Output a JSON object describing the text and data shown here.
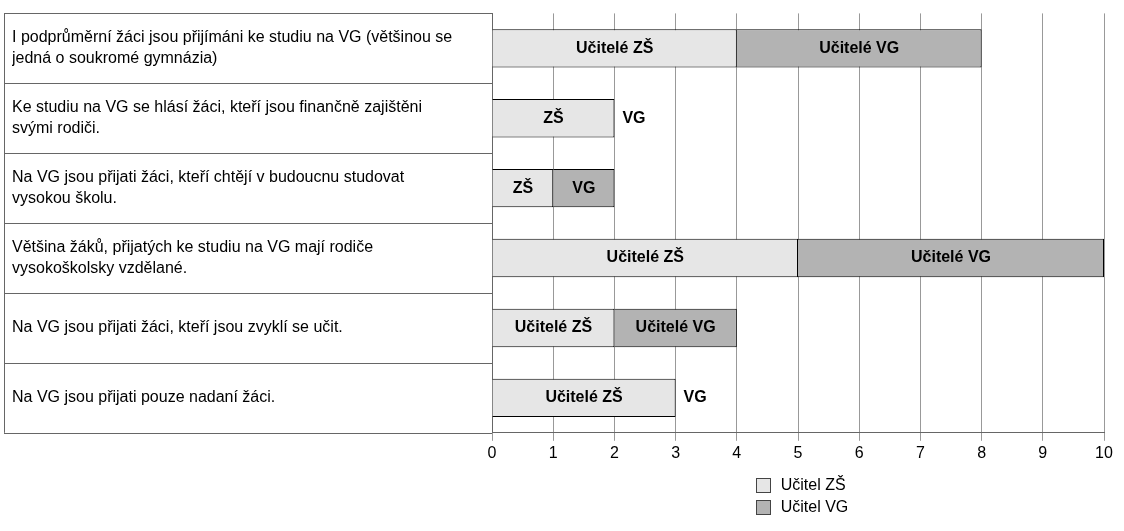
{
  "chart_data": {
    "type": "bar",
    "orientation": "horizontal",
    "stacked": true,
    "categories": [
      "I podprůměrní žáci jsou přijímáni ke studiu na VG (většinou se jedná o soukromé gymnázia)",
      "Ke studiu na VG se hlásí žáci, kteří jsou finančně zajištěni svými rodiči.",
      "Na VG jsou přijati žáci, kteří chtějí v budoucnu studovat vysokou školu.",
      "Většina žáků, přijatých ke studiu na VG mají rodiče vysokoškolsky vzdělané.",
      "Na VG jsou přijati žáci, kteří jsou zvyklí se učit.",
      "Na VG jsou přijati pouze nadaní žáci."
    ],
    "series": [
      {
        "name": "Učitel ZŠ",
        "color": "#e6e6e6",
        "values": [
          4,
          2,
          1,
          5,
          2,
          3
        ],
        "value_labels": [
          "Učitelé ZŠ",
          "ZŠ",
          "ZŠ",
          "Učitelé ZŠ",
          "Učitelé ZŠ",
          "Učitelé ZŠ"
        ]
      },
      {
        "name": "Učitel VG",
        "color": "#b3b3b3",
        "values": [
          4,
          0,
          1,
          5,
          2,
          0
        ],
        "value_labels": [
          "Učitelé VG",
          "VG",
          "VG",
          "Učitelé VG",
          "Učitelé VG",
          "VG"
        ]
      }
    ],
    "xlim": [
      0,
      10
    ],
    "xticks": [
      0,
      1,
      2,
      3,
      4,
      5,
      6,
      7,
      8,
      9,
      10
    ],
    "grid": "x",
    "legend": "bottom"
  }
}
